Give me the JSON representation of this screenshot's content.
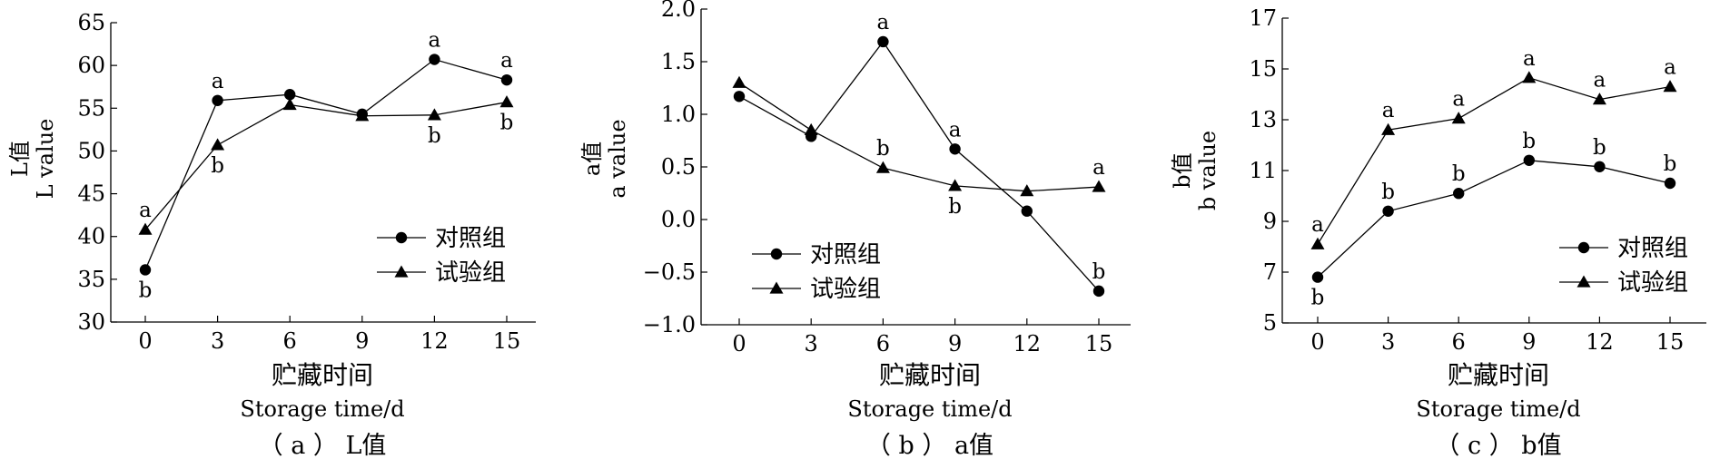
{
  "colors": {
    "ink": "#000000",
    "background": "#ffffff"
  },
  "chart_data": [
    {
      "type": "line",
      "caption": "（ a ） L值",
      "ylabel_cn": "L值",
      "ylabel_en": "L value",
      "xlabel_cn": "贮藏时间",
      "xlabel_en": "Storage time/d",
      "x": [
        0,
        3,
        6,
        9,
        12,
        15
      ],
      "ylim": [
        30,
        65
      ],
      "yticks": [
        "30",
        "35",
        "40",
        "45",
        "50",
        "55",
        "60",
        "65"
      ],
      "xticks": [
        "0",
        "3",
        "6",
        "9",
        "12",
        "15"
      ],
      "legend_position": "bottom-right",
      "series": [
        {
          "name": "对照组",
          "marker": "circle",
          "values": [
            36.1,
            55.9,
            56.6,
            54.3,
            60.7,
            58.3
          ],
          "letters": [
            "b",
            "a",
            "",
            "",
            "a",
            "a"
          ],
          "letter_pos": [
            "below",
            "above",
            "",
            "",
            "above",
            "above"
          ]
        },
        {
          "name": "试验组",
          "marker": "triangle",
          "values": [
            40.8,
            50.7,
            55.4,
            54.1,
            54.2,
            55.7
          ],
          "letters": [
            "a",
            "b",
            "",
            "",
            "b",
            "b"
          ],
          "letter_pos": [
            "above",
            "below",
            "",
            "",
            "below",
            "below"
          ]
        }
      ]
    },
    {
      "type": "line",
      "caption": "（ b ） a值",
      "ylabel_cn": "a值",
      "ylabel_en": "a value",
      "xlabel_cn": "贮藏时间",
      "xlabel_en": "Storage time/d",
      "x": [
        0,
        3,
        6,
        9,
        12,
        15
      ],
      "ylim": [
        -1.0,
        2.0
      ],
      "yticks": [
        "−1.0",
        "−0.5",
        "0.0",
        "0.5",
        "1.0",
        "1.5",
        "2.0"
      ],
      "xticks": [
        "0",
        "3",
        "6",
        "9",
        "12",
        "15"
      ],
      "legend_position": "bottom-left",
      "series": [
        {
          "name": "对照组",
          "marker": "circle",
          "values": [
            1.17,
            0.79,
            1.69,
            0.67,
            0.08,
            -0.68
          ],
          "letters": [
            "",
            "",
            "a",
            "a",
            "",
            "b"
          ],
          "letter_pos": [
            "",
            "",
            "above",
            "above",
            "",
            "above"
          ]
        },
        {
          "name": "试验组",
          "marker": "triangle",
          "values": [
            1.3,
            0.85,
            0.49,
            0.32,
            0.27,
            0.31
          ],
          "letters": [
            "",
            "",
            "b",
            "b",
            "",
            "a"
          ],
          "letter_pos": [
            "",
            "",
            "above",
            "below",
            "",
            "above"
          ]
        }
      ]
    },
    {
      "type": "line",
      "caption": "（ c ） b值",
      "ylabel_cn": "b值",
      "ylabel_en": "b value",
      "xlabel_cn": "贮藏时间",
      "xlabel_en": "Storage time/d",
      "x": [
        0,
        3,
        6,
        9,
        12,
        15
      ],
      "ylim": [
        5,
        17
      ],
      "yticks": [
        "5",
        "7",
        "9",
        "11",
        "13",
        "15",
        "17"
      ],
      "xticks": [
        "0",
        "3",
        "6",
        "9",
        "12",
        "15"
      ],
      "legend_position": "bottom-right",
      "series": [
        {
          "name": "对照组",
          "marker": "circle",
          "values": [
            6.8,
            9.4,
            10.1,
            11.4,
            11.15,
            10.5
          ],
          "letters": [
            "b",
            "b",
            "b",
            "b",
            "b",
            "b"
          ],
          "letter_pos": [
            "below",
            "above",
            "above",
            "above",
            "above",
            "above"
          ]
        },
        {
          "name": "试验组",
          "marker": "triangle",
          "values": [
            8.1,
            12.6,
            13.05,
            14.65,
            13.8,
            14.3
          ],
          "letters": [
            "a",
            "a",
            "a",
            "a",
            "a",
            "a"
          ],
          "letter_pos": [
            "above",
            "above",
            "above",
            "above",
            "above",
            "above"
          ]
        }
      ]
    }
  ]
}
